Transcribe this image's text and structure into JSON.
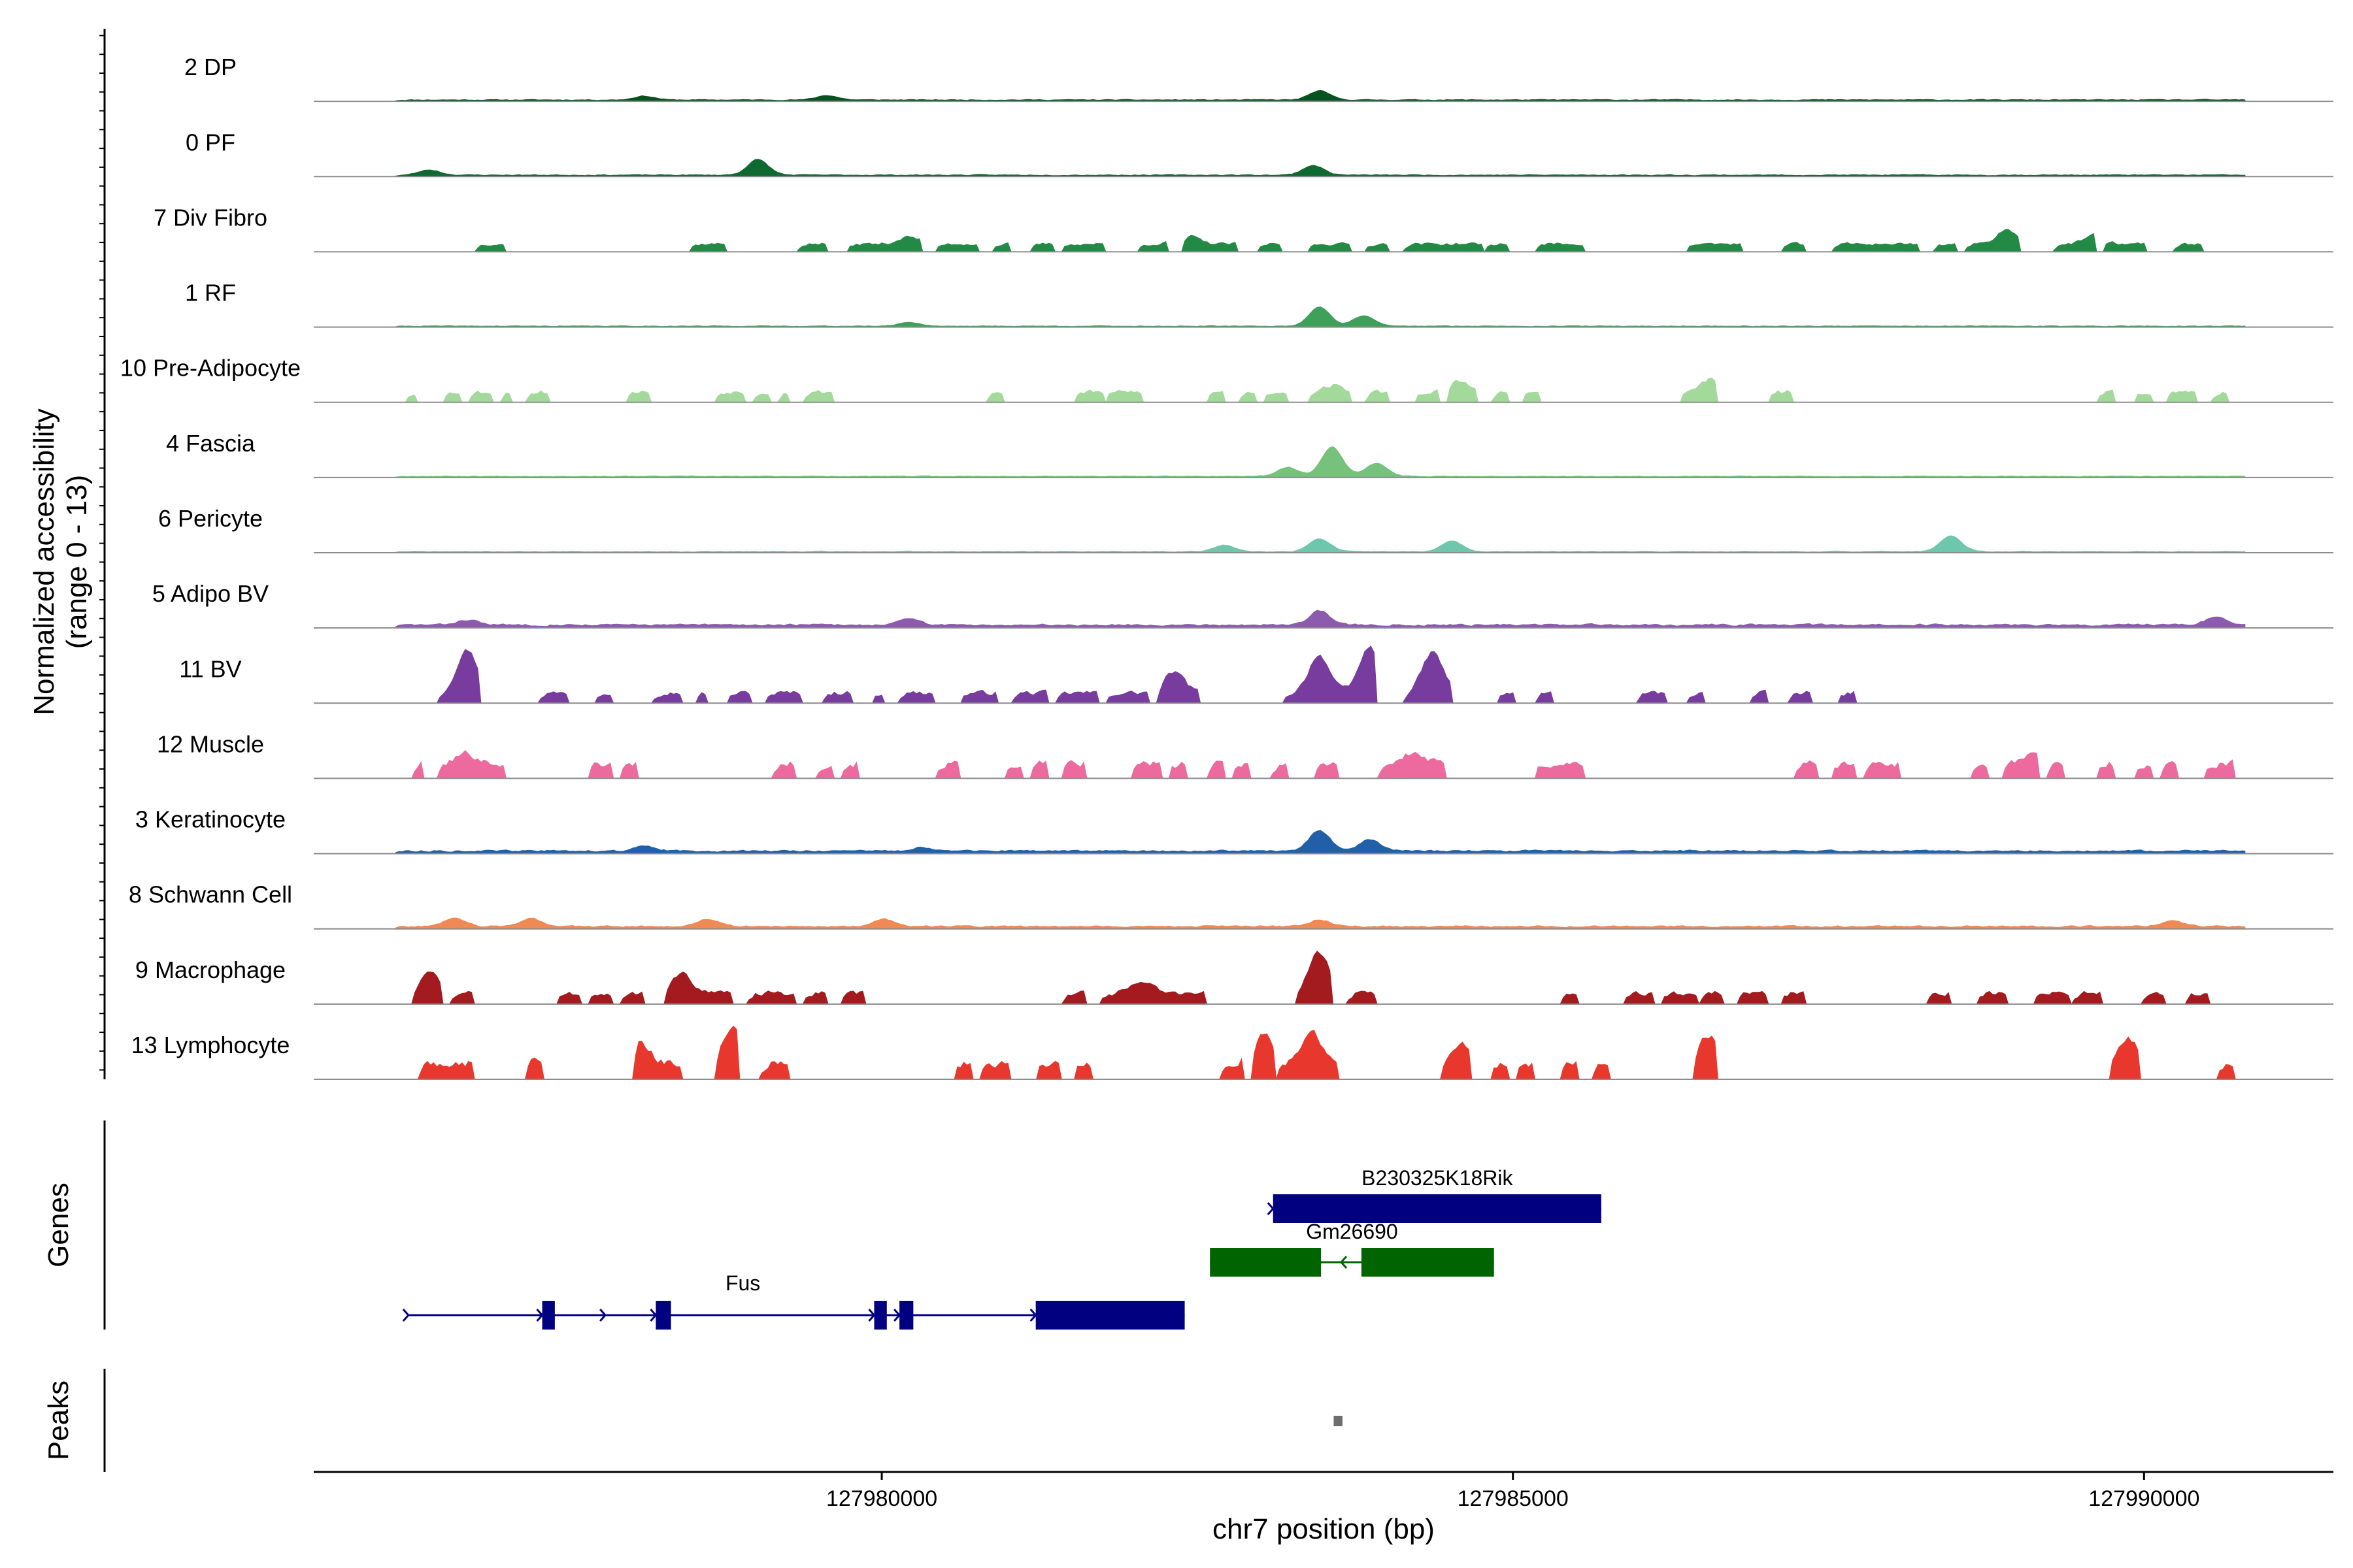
{
  "chart_data": {
    "type": "area",
    "title": "",
    "xlabel": "chr7 position (bp)",
    "ylabel": "Normalized accessibility",
    "ylabel2": "(range 0 - 13)",
    "xlim": [
      127975500,
      127991500
    ],
    "xticks": [
      127980000,
      127985000,
      127990000
    ],
    "xtick_labels": [
      "127980000",
      "127985000",
      "127990000"
    ],
    "ylim": [
      0,
      13
    ],
    "tracks": [
      {
        "name": "2 DP",
        "color": "#08521f",
        "style": "continuous",
        "level": 0.12,
        "seed": 11,
        "peaks": [
          [
            127983450,
            0.7
          ],
          [
            127979550,
            0.35
          ],
          [
            127978100,
            0.3
          ]
        ]
      },
      {
        "name": "0 PF",
        "color": "#0e6a30",
        "style": "continuous",
        "level": 0.13,
        "seed": 23,
        "peaks": [
          [
            127979000,
            1.2
          ],
          [
            127983400,
            0.75
          ],
          [
            127976400,
            0.4
          ]
        ]
      },
      {
        "name": "7 Div Fibro",
        "color": "#228a44",
        "style": "blocks",
        "level": 0.35,
        "seed": 37,
        "peaks": [
          [
            127982400,
            0.75
          ],
          [
            127988900,
            1.1
          ],
          [
            127989600,
            0.7
          ],
          [
            127980200,
            0.55
          ]
        ],
        "blocks": [
          [
            127976800,
            127977000
          ],
          [
            127978500,
            127978750
          ],
          [
            127979350,
            127979550
          ],
          [
            127979750,
            127980300
          ],
          [
            127980450,
            127980750
          ],
          [
            127980900,
            127981000
          ],
          [
            127981200,
            127981350
          ],
          [
            127981450,
            127981750
          ],
          [
            127982050,
            127982250
          ],
          [
            127982400,
            127982800
          ],
          [
            127983000,
            127983150
          ],
          [
            127983400,
            127983700
          ],
          [
            127983850,
            127984000
          ],
          [
            127984150,
            127984750
          ],
          [
            127984800,
            127984950
          ],
          [
            127985200,
            127985550
          ],
          [
            127986400,
            127986800
          ],
          [
            127987150,
            127987300
          ],
          [
            127987550,
            127988200
          ],
          [
            127988350,
            127988500
          ],
          [
            127988600,
            127989000
          ],
          [
            127989300,
            127989600
          ],
          [
            127989700,
            127990000
          ],
          [
            127990250,
            127990450
          ]
        ]
      },
      {
        "name": "1 RF",
        "color": "#3fa05a",
        "style": "continuous",
        "level": 0.08,
        "seed": 41,
        "peaks": [
          [
            127983450,
            1.5
          ],
          [
            127983800,
            0.8
          ],
          [
            127980200,
            0.3
          ]
        ]
      },
      {
        "name": "10 Pre-Adipocyte",
        "color": "#a3d99a",
        "style": "blocks",
        "level": 0.55,
        "seed": 53,
        "peaks": [
          [
            127986550,
            0.95
          ],
          [
            127984550,
            0.85
          ],
          [
            127983550,
            0.5
          ]
        ],
        "blocks": [
          [
            127976250,
            127976300
          ],
          [
            127976550,
            127976650
          ],
          [
            127976750,
            127976900
          ],
          [
            127977000,
            127977050
          ],
          [
            127977200,
            127977350
          ],
          [
            127978000,
            127978150
          ],
          [
            127978700,
            127978900
          ],
          [
            127979000,
            127979100
          ],
          [
            127979200,
            127979250
          ],
          [
            127979400,
            127979600
          ],
          [
            127980850,
            127980950
          ],
          [
            127981550,
            127981750
          ],
          [
            127981800,
            127982050
          ],
          [
            127982600,
            127982700
          ],
          [
            127982850,
            127982950
          ],
          [
            127983050,
            127983200
          ],
          [
            127983400,
            127983700
          ],
          [
            127983850,
            127984000
          ],
          [
            127984250,
            127984400
          ],
          [
            127984500,
            127984700
          ],
          [
            127984850,
            127984950
          ],
          [
            127985100,
            127985200
          ],
          [
            127986350,
            127986600
          ],
          [
            127987050,
            127987200
          ],
          [
            127989650,
            127989750
          ],
          [
            127989950,
            127990050
          ],
          [
            127990200,
            127990400
          ],
          [
            127990550,
            127990650
          ]
        ]
      },
      {
        "name": "4 Fascia",
        "color": "#76c17b",
        "style": "continuous",
        "level": 0.1,
        "seed": 67,
        "peaks": [
          [
            127983550,
            2.3
          ],
          [
            127983900,
            1.0
          ],
          [
            127983200,
            0.7
          ]
        ]
      },
      {
        "name": "6 Pericyte",
        "color": "#6fc7ab",
        "style": "continuous",
        "level": 0.1,
        "seed": 71,
        "peaks": [
          [
            127983450,
            1.0
          ],
          [
            127988450,
            1.2
          ],
          [
            127984500,
            0.8
          ],
          [
            127982700,
            0.5
          ]
        ]
      },
      {
        "name": "5 Adipo BV",
        "color": "#8c5bb0",
        "style": "continuous",
        "level": 0.25,
        "seed": 83,
        "peaks": [
          [
            127983450,
            1.1
          ],
          [
            127980200,
            0.45
          ],
          [
            127990550,
            0.55
          ],
          [
            127976700,
            0.4
          ]
        ]
      },
      {
        "name": "11 BV",
        "color": "#783c9e",
        "style": "blocks",
        "level": 0.55,
        "seed": 97,
        "peaks": [
          [
            127976700,
            3.3
          ],
          [
            127983450,
            2.9
          ],
          [
            127983850,
            3.5
          ],
          [
            127984350,
            3.1
          ],
          [
            127982300,
            1.6
          ]
        ],
        "blocks": [
          [
            127976500,
            127976800
          ],
          [
            127977300,
            127977500
          ],
          [
            127977750,
            127977850
          ],
          [
            127978200,
            127978400
          ],
          [
            127978550,
            127978600
          ],
          [
            127978800,
            127978950
          ],
          [
            127979100,
            127979350
          ],
          [
            127979550,
            127979750
          ],
          [
            127979950,
            127980000
          ],
          [
            127980150,
            127980400
          ],
          [
            127980650,
            127980900
          ],
          [
            127981050,
            127981300
          ],
          [
            127981400,
            127981700
          ],
          [
            127981800,
            127982100
          ],
          [
            127982200,
            127982500
          ],
          [
            127983200,
            127983900
          ],
          [
            127984150,
            127984500
          ],
          [
            127984900,
            127985000
          ],
          [
            127985200,
            127985300
          ],
          [
            127986000,
            127986200
          ],
          [
            127986400,
            127986500
          ],
          [
            127986900,
            127987000
          ],
          [
            127987200,
            127987350
          ],
          [
            127987600,
            127987700
          ]
        ]
      },
      {
        "name": "12 Muscle",
        "color": "#ed6a9f",
        "style": "blocks",
        "level": 0.9,
        "seed": 101,
        "peaks": [
          [
            127976700,
            0.8
          ],
          [
            127984200,
            0.8
          ],
          [
            127989100,
            0.6
          ]
        ],
        "blocks": [
          [
            127976300,
            127976350
          ],
          [
            127976500,
            127977000
          ],
          [
            127977700,
            127977850
          ],
          [
            127977950,
            127978050
          ],
          [
            127979150,
            127979300
          ],
          [
            127979500,
            127979600
          ],
          [
            127979700,
            127979800
          ],
          [
            127980450,
            127980600
          ],
          [
            127981000,
            127981100
          ],
          [
            127981200,
            127981300
          ],
          [
            127981450,
            127981600
          ],
          [
            127982000,
            127982200
          ],
          [
            127982300,
            127982400
          ],
          [
            127982600,
            127982700
          ],
          [
            127982800,
            127982900
          ],
          [
            127983100,
            127983200
          ],
          [
            127983450,
            127983600
          ],
          [
            127983950,
            127984450
          ],
          [
            127985200,
            127985550
          ],
          [
            127987250,
            127987400
          ],
          [
            127987550,
            127987700
          ],
          [
            127987800,
            127988050
          ],
          [
            127988650,
            127988750
          ],
          [
            127988900,
            127989150
          ],
          [
            127989250,
            127989350
          ],
          [
            127989650,
            127989750
          ],
          [
            127989950,
            127990050
          ],
          [
            127990150,
            127990250
          ],
          [
            127990500,
            127990700
          ]
        ]
      },
      {
        "name": "3 Keratinocyte",
        "color": "#2160a8",
        "style": "continuous",
        "level": 0.22,
        "seed": 113,
        "peaks": [
          [
            127983450,
            1.6
          ],
          [
            127983850,
            0.9
          ],
          [
            127978100,
            0.35
          ],
          [
            127980300,
            0.3
          ]
        ]
      },
      {
        "name": "8 Schwann Cell",
        "color": "#f08a55",
        "style": "continuous",
        "level": 0.2,
        "seed": 127,
        "peaks": [
          [
            127976600,
            0.7
          ],
          [
            127977200,
            0.65
          ],
          [
            127978600,
            0.6
          ],
          [
            127980000,
            0.55
          ],
          [
            127983450,
            0.5
          ],
          [
            127990200,
            0.45
          ]
        ]
      },
      {
        "name": "9 Macrophage",
        "color": "#a31a1f",
        "style": "blocks",
        "level": 0.6,
        "seed": 131,
        "peaks": [
          [
            127983450,
            3.1
          ],
          [
            127976400,
            1.6
          ],
          [
            127978400,
            1.5
          ],
          [
            127982050,
            1.0
          ]
        ],
        "blocks": [
          [
            127976300,
            127976500
          ],
          [
            127976600,
            127976750
          ],
          [
            127977450,
            127977600
          ],
          [
            127977700,
            127977850
          ],
          [
            127977950,
            127978100
          ],
          [
            127978300,
            127978800
          ],
          [
            127978950,
            127979300
          ],
          [
            127979400,
            127979550
          ],
          [
            127979700,
            127979850
          ],
          [
            127981450,
            127981600
          ],
          [
            127981750,
            127982550
          ],
          [
            127983300,
            127983550
          ],
          [
            127983700,
            127983900
          ],
          [
            127985400,
            127985500
          ],
          [
            127985900,
            127986100
          ],
          [
            127986200,
            127986450
          ],
          [
            127986500,
            127986650
          ],
          [
            127986800,
            127987000
          ],
          [
            127987150,
            127987300
          ],
          [
            127988300,
            127988450
          ],
          [
            127988700,
            127988900
          ],
          [
            127989150,
            127989400
          ],
          [
            127989450,
            127989650
          ],
          [
            127990000,
            127990150
          ],
          [
            127990350,
            127990500
          ]
        ]
      },
      {
        "name": "13 Lymphocyte",
        "color": "#e8382d",
        "style": "blocks",
        "level": 1.0,
        "seed": 149,
        "peaks": [
          [
            127983000,
            2.4
          ],
          [
            127983400,
            2.2
          ],
          [
            127986550,
            2.2
          ],
          [
            127989850,
            2.0
          ],
          [
            127978050,
            2.0
          ],
          [
            127978800,
            2.6
          ],
          [
            127977150,
            0.5
          ],
          [
            127984550,
            1.6
          ]
        ],
        "blocks": [
          [
            127976350,
            127976550
          ],
          [
            127976550,
            127976750
          ],
          [
            127977200,
            127977300
          ],
          [
            127978050,
            127978400
          ],
          [
            127978700,
            127978850
          ],
          [
            127979050,
            127979250
          ],
          [
            127980600,
            127980700
          ],
          [
            127980800,
            127981000
          ],
          [
            127981250,
            127981400
          ],
          [
            127981550,
            127981650
          ],
          [
            127982700,
            127982850
          ],
          [
            127982950,
            127983100
          ],
          [
            127983150,
            127983350
          ],
          [
            127983350,
            127983600
          ],
          [
            127984450,
            127984650
          ],
          [
            127984850,
            127984950
          ],
          [
            127985050,
            127985150
          ],
          [
            127985400,
            127985500
          ],
          [
            127985650,
            127985750
          ],
          [
            127986450,
            127986600
          ],
          [
            127989750,
            127989950
          ],
          [
            127990600,
            127990700
          ]
        ]
      }
    ],
    "genes": [
      {
        "name": "B230325K18Rik",
        "color": "#000080",
        "strand": "+",
        "start": 127983100,
        "end": 127985700,
        "exons": [
          [
            127983100,
            127985700
          ]
        ]
      },
      {
        "name": "Gm26690",
        "color": "#006400",
        "strand": "-",
        "start": 127982600,
        "end": 127984850,
        "exons": [
          [
            127982600,
            127983480
          ],
          [
            127983800,
            127984850
          ]
        ]
      },
      {
        "name": "Fus",
        "color": "#000080",
        "strand": "+",
        "start": 127976250,
        "end": 127982400,
        "exons": [
          [
            127977310,
            127977410
          ],
          [
            127978210,
            127978330
          ],
          [
            127979940,
            127980040
          ],
          [
            127980140,
            127980250
          ],
          [
            127981220,
            127982400
          ]
        ]
      }
    ],
    "genes_label": "Genes",
    "peaks_label": "Peaks",
    "peaks": [
      [
        127983580,
        127983650
      ]
    ]
  }
}
